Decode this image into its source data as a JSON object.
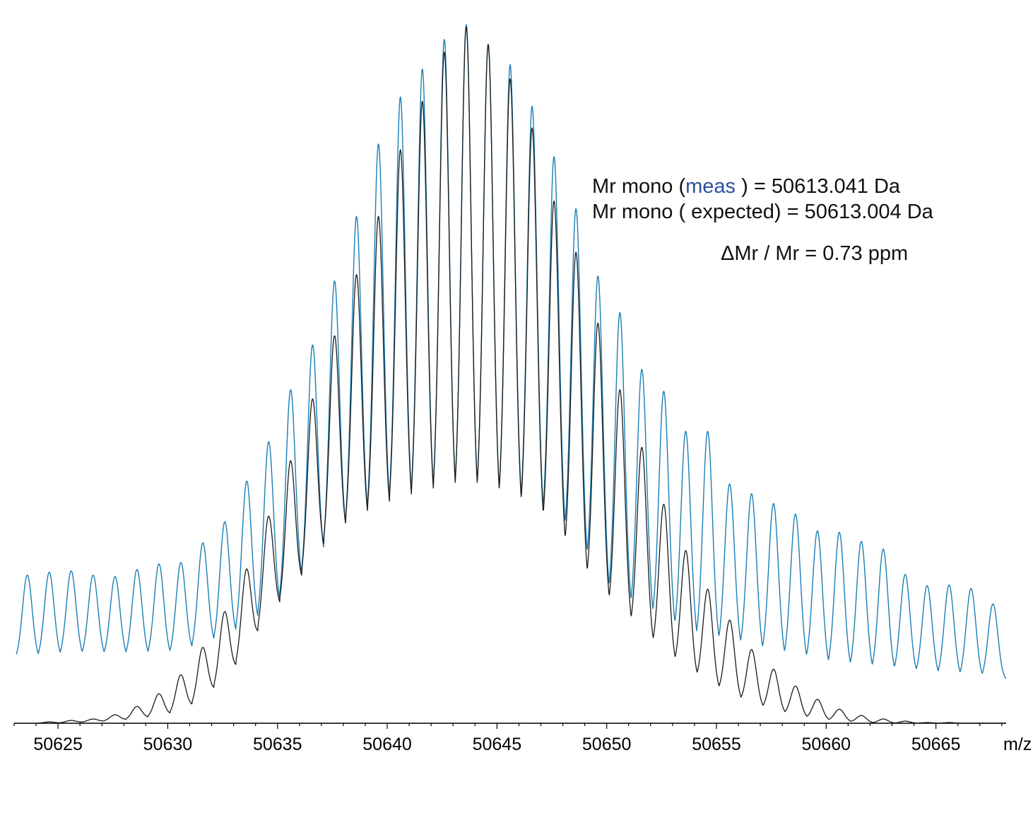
{
  "chart_data": {
    "type": "line",
    "xlabel": "m/z",
    "ylabel": "",
    "title": "",
    "xlim": [
      50623.0,
      50668.2
    ],
    "ylim": [
      0,
      100
    ],
    "x_ticks": [
      50625,
      50630,
      50635,
      50640,
      50645,
      50650,
      50655,
      50660,
      50665
    ],
    "x_minor_step": 1,
    "grid": false,
    "legend": "none",
    "peak_spacing": 1.0,
    "peak_width": 0.22,
    "series": [
      {
        "color": "#1b7fb5",
        "peak_x": [
          50623.6,
          50624.6,
          50625.6,
          50626.6,
          50627.6,
          50628.6,
          50629.6,
          50630.6,
          50631.6,
          50632.6,
          50633.6,
          50634.6,
          50635.6,
          50636.6,
          50637.6,
          50638.6,
          50639.6,
          50640.6,
          50641.6,
          50642.6,
          50643.6,
          50644.6,
          50645.6,
          50646.6,
          50647.6,
          50648.6,
          50649.6,
          50650.6,
          50651.6,
          50652.6,
          50653.6,
          50654.6,
          50655.6,
          50656.6,
          50657.6,
          50658.6,
          50659.6,
          50660.6,
          50661.6,
          50662.6,
          50663.6,
          50664.6,
          50665.6,
          50666.6,
          50667.6
        ],
        "peak_top": [
          21.1,
          21.5,
          21.7,
          21.1,
          20.9,
          21.9,
          22.7,
          22.9,
          25.7,
          28.7,
          34.5,
          40.1,
          47.5,
          53.9,
          63.0,
          72.2,
          82.5,
          89.2,
          93.2,
          97.4,
          99.5,
          96.7,
          93.8,
          87.9,
          80.7,
          73.3,
          63.7,
          58.5,
          50.4,
          47.3,
          41.6,
          41.6,
          34.1,
          32.7,
          31.3,
          29.8,
          27.4,
          27.2,
          25.9,
          24.8,
          21.2,
          19.6,
          19.7,
          19.2,
          17.0
        ],
        "valley_bottom": [
          8.9,
          9.1,
          9.3,
          9.3,
          9.3,
          9.3,
          9.3,
          9.4,
          10.7,
          11.3,
          13.0,
          14.6,
          17.5,
          20.9,
          24.6,
          26.8,
          27.7,
          28.4,
          28.5,
          29.2,
          29.5,
          28.8,
          28.1,
          27.6,
          25.5,
          23.8,
          18.1,
          14.7,
          14.5,
          12.6,
          11.4,
          10.3,
          10.3,
          9.8,
          8.7,
          8.6,
          7.8,
          7.3,
          7.1,
          6.9,
          6.8,
          6.6,
          6.4,
          6.2,
          6.1
        ]
      },
      {
        "color": "#1a1a1a",
        "peak_x": [
          50624.6,
          50625.6,
          50626.6,
          50627.6,
          50628.6,
          50629.6,
          50630.6,
          50631.6,
          50632.6,
          50633.6,
          50634.6,
          50635.6,
          50636.6,
          50637.6,
          50638.6,
          50639.6,
          50640.6,
          50641.6,
          50642.6,
          50643.6,
          50644.6,
          50645.6,
          50646.6,
          50647.6,
          50648.6,
          50649.6,
          50650.6,
          50651.6,
          50652.6,
          50653.6,
          50654.6,
          50655.6,
          50656.6,
          50657.6,
          50658.6,
          50659.6,
          50660.6,
          50661.6,
          50662.6,
          50663.6,
          50664.6,
          50665.6,
          50666.6,
          50667.6
        ],
        "peak_top": [
          0.2,
          0.4,
          0.6,
          1.2,
          2.4,
          4.2,
          6.9,
          10.8,
          15.9,
          22.0,
          29.5,
          37.4,
          46.2,
          55.2,
          63.9,
          72.2,
          81.7,
          88.6,
          95.6,
          99.2,
          96.7,
          91.8,
          84.8,
          74.4,
          67.1,
          57.0,
          47.5,
          39.3,
          31.2,
          24.6,
          19.1,
          14.7,
          10.5,
          7.7,
          5.3,
          3.4,
          2.0,
          1.1,
          0.6,
          0.3,
          0.1,
          0.1,
          0.0,
          0.0
        ],
        "valley_bottom": [
          0.0,
          0.1,
          0.2,
          0.4,
          0.6,
          1.0,
          1.5,
          3.3,
          6.0,
          9.5,
          15.4,
          17.2,
          22.3,
          25.6,
          27.1,
          28.0,
          28.6,
          28.7,
          29.3,
          29.3,
          28.7,
          28.0,
          26.8,
          25.0,
          20.7,
          16.5,
          14.2,
          11.6,
          9.0,
          7.0,
          5.2,
          3.6,
          2.5,
          1.6,
          1.0,
          0.5,
          0.3,
          0.1,
          0.0,
          0.0,
          0.0,
          0.0,
          0.0,
          0.0
        ]
      }
    ]
  },
  "annotation": {
    "line1_prefix": "Mr mono (",
    "line1_highlight": "meas",
    "line1_suffix": " ) = 50613.041 Da",
    "line2": "Mr mono ( expected) = 50613.004 Da",
    "line3": "ΔMr / Mr   = 0.73 ppm"
  }
}
